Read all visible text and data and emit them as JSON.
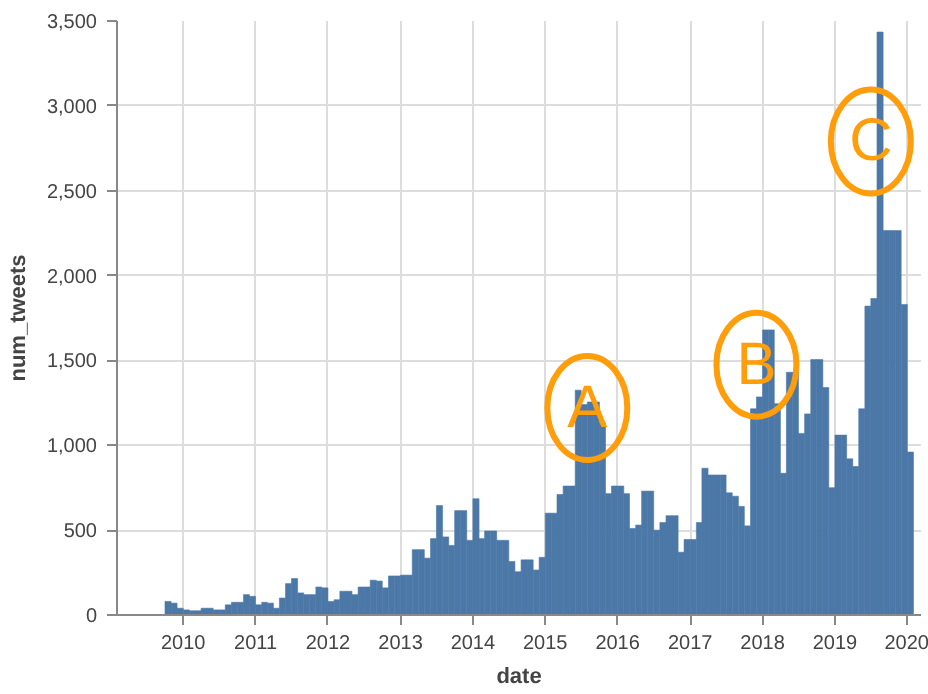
{
  "chart_data": {
    "type": "bar",
    "xlabel": "date",
    "ylabel": "num_tweets",
    "color": "#4c78a8",
    "grid": true,
    "x": [
      "2009-10",
      "2009-11",
      "2009-12",
      "2010-01",
      "2010-02",
      "2010-03",
      "2010-04",
      "2010-05",
      "2010-06",
      "2010-07",
      "2010-08",
      "2010-09",
      "2010-10",
      "2010-11",
      "2010-12",
      "2011-01",
      "2011-02",
      "2011-03",
      "2011-04",
      "2011-05",
      "2011-06",
      "2011-07",
      "2011-08",
      "2011-09",
      "2011-10",
      "2011-11",
      "2011-12",
      "2012-01",
      "2012-02",
      "2012-03",
      "2012-04",
      "2012-05",
      "2012-06",
      "2012-07",
      "2012-08",
      "2012-09",
      "2012-10",
      "2012-11",
      "2012-12",
      "2013-01",
      "2013-02",
      "2013-03",
      "2013-04",
      "2013-05",
      "2013-06",
      "2013-07",
      "2013-08",
      "2013-09",
      "2013-10",
      "2013-11",
      "2013-12",
      "2014-01",
      "2014-02",
      "2014-03",
      "2014-04",
      "2014-05",
      "2014-06",
      "2014-07",
      "2014-08",
      "2014-09",
      "2014-10",
      "2014-11",
      "2014-12",
      "2015-01",
      "2015-02",
      "2015-03",
      "2015-04",
      "2015-05",
      "2015-06",
      "2015-07",
      "2015-08",
      "2015-09",
      "2015-10",
      "2015-11",
      "2015-12",
      "2016-01",
      "2016-02",
      "2016-03",
      "2016-04",
      "2016-05",
      "2016-06",
      "2016-07",
      "2016-08",
      "2016-09",
      "2016-10",
      "2016-11",
      "2016-12",
      "2017-01",
      "2017-02",
      "2017-03",
      "2017-04",
      "2017-05",
      "2017-06",
      "2017-07",
      "2017-08",
      "2017-09",
      "2017-10",
      "2017-11",
      "2017-12",
      "2018-01",
      "2018-02",
      "2018-03",
      "2018-04",
      "2018-05",
      "2018-06",
      "2018-07",
      "2018-08",
      "2018-09",
      "2018-10",
      "2018-11",
      "2018-12",
      "2019-01",
      "2019-02",
      "2019-03",
      "2019-04",
      "2019-05",
      "2019-06",
      "2019-07",
      "2019-08",
      "2019-09",
      "2019-10",
      "2019-11",
      "2019-12",
      "2020-01"
    ],
    "values": [
      80,
      70,
      40,
      30,
      25,
      25,
      40,
      40,
      30,
      30,
      60,
      75,
      75,
      120,
      110,
      60,
      75,
      70,
      40,
      100,
      185,
      215,
      130,
      120,
      120,
      165,
      160,
      80,
      90,
      140,
      140,
      120,
      165,
      165,
      205,
      200,
      160,
      230,
      230,
      235,
      235,
      385,
      385,
      335,
      450,
      645,
      460,
      410,
      615,
      615,
      440,
      685,
      450,
      495,
      495,
      440,
      440,
      315,
      255,
      325,
      325,
      265,
      340,
      600,
      600,
      710,
      760,
      760,
      1325,
      1240,
      1255,
      1255,
      1130,
      715,
      760,
      760,
      715,
      510,
      530,
      730,
      730,
      500,
      545,
      585,
      585,
      370,
      445,
      445,
      545,
      865,
      825,
      825,
      825,
      720,
      700,
      640,
      525,
      1215,
      1285,
      1680,
      1680,
      1245,
      835,
      1430,
      1430,
      1070,
      1185,
      1505,
      1505,
      1340,
      750,
      1060,
      1060,
      920,
      875,
      1215,
      1820,
      1865,
      3435,
      2265,
      2265,
      2265,
      1830,
      960
    ],
    "xlim": [
      "2009-02-01",
      "2020-03-10"
    ],
    "xticks": [
      "2010",
      "2011",
      "2012",
      "2013",
      "2014",
      "2015",
      "2016",
      "2017",
      "2018",
      "2019",
      "2020"
    ],
    "ylim": [
      0,
      3500
    ],
    "yticks": [
      0,
      {
        "value": 500,
        "label": "500"
      },
      {
        "value": 1000,
        "label": "1,000"
      },
      {
        "value": 1500,
        "label": "1,500"
      },
      {
        "value": 2000,
        "label": "2,000"
      },
      {
        "value": 2500,
        "label": "2,500"
      },
      {
        "value": 3000,
        "label": "3,000"
      },
      {
        "value": 3500,
        "label": "3,500"
      }
    ],
    "annotations": [
      {
        "text": "A",
        "x": "2015-08",
        "y": 1220
      },
      {
        "text": "B",
        "x": "2017-12",
        "y": 1475
      },
      {
        "text": "C",
        "x": "2019-07",
        "y": 2790
      }
    ]
  }
}
